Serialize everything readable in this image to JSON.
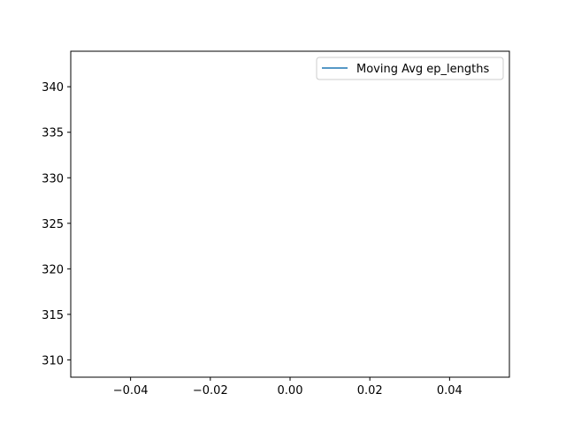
{
  "chart_data": {
    "type": "line",
    "title": "",
    "xlabel": "",
    "ylabel": "",
    "xlim": [
      -0.055,
      0.055
    ],
    "ylim": [
      308.1,
      343.9
    ],
    "x_ticks": [
      -0.04,
      -0.02,
      0.0,
      0.02,
      0.04
    ],
    "x_tick_labels": [
      "−0.04",
      "−0.02",
      "0.00",
      "0.02",
      "0.04"
    ],
    "y_ticks": [
      310,
      315,
      320,
      325,
      330,
      335,
      340
    ],
    "y_tick_labels": [
      "310",
      "315",
      "320",
      "325",
      "330",
      "335",
      "340"
    ],
    "series": [
      {
        "name": "Moving Avg ep_lengths",
        "color": "#1f77b4",
        "x": [],
        "y": []
      }
    ],
    "grid": false,
    "legend_position": "upper right"
  }
}
